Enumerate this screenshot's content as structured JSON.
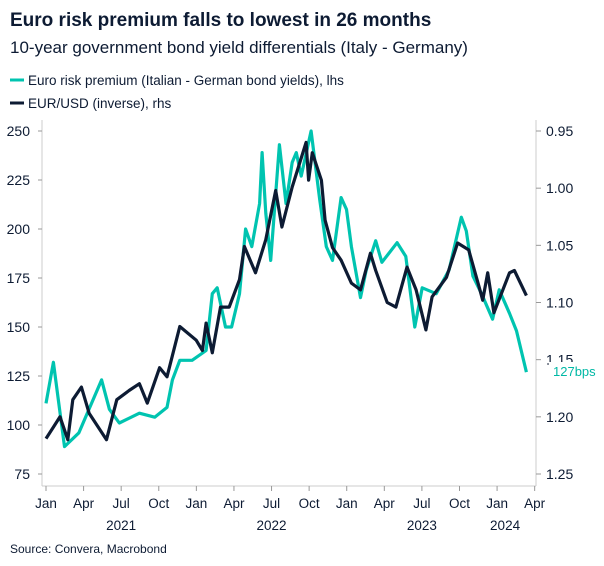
{
  "chart_data": {
    "type": "line",
    "title": "Euro risk premium falls to lowest in 26 months",
    "subtitle": "10-year government bond yield differentials (Italy - Germany)",
    "source": "Source: Convera, Macrobond",
    "annotation": "127bps",
    "colors": {
      "spread": "#00c4b0",
      "eurusd": "#0d1b33",
      "annotation": "#00b8a5",
      "axis": "#cccccc",
      "text": "#0d1b33"
    },
    "x_ticks": [
      "Jan",
      "Apr",
      "Jul",
      "Oct",
      "Jan",
      "Apr",
      "Jul",
      "Oct",
      "Jan",
      "Apr",
      "Jul",
      "Oct",
      "Jan",
      "Apr"
    ],
    "x_years": [
      "2021",
      "2022",
      "2023",
      "2024"
    ],
    "left_axis": {
      "range": [
        75,
        250
      ],
      "ticks": [
        "250",
        "225",
        "200",
        "175",
        "150",
        "125",
        "100",
        "75"
      ],
      "values": [
        250,
        225,
        200,
        175,
        150,
        125,
        100,
        75
      ]
    },
    "right_axis": {
      "range": [
        0.95,
        1.25
      ],
      "inverted": true,
      "ticks": [
        "0.95",
        "1.00",
        "1.05",
        "1.10",
        "1.15",
        "1.20",
        "1.25"
      ],
      "values": [
        0.95,
        1.0,
        1.05,
        1.1,
        1.15,
        1.2,
        1.25
      ]
    },
    "legend_position": "top-left",
    "series": [
      {
        "name": "Euro risk premium (Italian - German bond yields), lhs",
        "axis": "left",
        "x": [
          "2021-01-01",
          "2021-01-19",
          "2021-02-01",
          "2021-02-15",
          "2021-03-22",
          "2021-05-16",
          "2021-06-04",
          "2021-06-28",
          "2021-08-16",
          "2021-09-22",
          "2021-10-22",
          "2021-11-04",
          "2021-11-22",
          "2021-12-22",
          "2022-01-25",
          "2022-02-09",
          "2022-02-21",
          "2022-03-13",
          "2022-03-28",
          "2022-04-16",
          "2022-05-01",
          "2022-05-16",
          "2022-06-04",
          "2022-06-10",
          "2022-06-19",
          "2022-07-01",
          "2022-07-22",
          "2022-08-07",
          "2022-08-22",
          "2022-09-01",
          "2022-09-13",
          "2022-10-07",
          "2022-10-28",
          "2022-11-13",
          "2022-11-28",
          "2022-12-19",
          "2023-01-01",
          "2023-01-13",
          "2023-02-04",
          "2023-02-18",
          "2023-03-13",
          "2023-03-28",
          "2023-05-04",
          "2023-05-25",
          "2023-06-16",
          "2023-07-04",
          "2023-08-07",
          "2023-09-07",
          "2023-10-07",
          "2023-10-19",
          "2023-11-04",
          "2023-11-25",
          "2023-12-22",
          "2024-01-07",
          "2024-02-01",
          "2024-02-18",
          "2024-03-13"
        ],
        "y": [
          111,
          132,
          111,
          89,
          96,
          123,
          108,
          101,
          106,
          104,
          109,
          123,
          133,
          133,
          138,
          167,
          170,
          150,
          150,
          167,
          200,
          191,
          213,
          239,
          208,
          184,
          243,
          213,
          234,
          239,
          227,
          250,
          215,
          191,
          184,
          216,
          210,
          191,
          165,
          179,
          194,
          183,
          193,
          186,
          150,
          170,
          167,
          179,
          206,
          199,
          176,
          167,
          154,
          169,
          157,
          148,
          127
        ]
      },
      {
        "name": "EUR/USD (inverse), rhs",
        "axis": "right",
        "x": [
          "2021-01-01",
          "2021-01-19",
          "2021-02-04",
          "2021-02-23",
          "2021-03-07",
          "2021-03-28",
          "2021-04-16",
          "2021-05-28",
          "2021-06-22",
          "2021-07-22",
          "2021-08-16",
          "2021-09-04",
          "2021-10-04",
          "2021-10-22",
          "2021-11-22",
          "2022-01-01",
          "2022-01-16",
          "2022-01-25",
          "2022-02-09",
          "2022-03-01",
          "2022-03-22",
          "2022-04-16",
          "2022-04-28",
          "2022-05-25",
          "2022-06-19",
          "2022-07-13",
          "2022-07-28",
          "2022-08-22",
          "2022-09-25",
          "2022-10-01",
          "2022-10-10",
          "2022-11-01",
          "2022-11-10",
          "2022-11-28",
          "2022-12-19",
          "2023-01-13",
          "2023-02-04",
          "2023-02-28",
          "2023-03-13",
          "2023-04-10",
          "2023-05-01",
          "2023-05-28",
          "2023-06-19",
          "2023-07-13",
          "2023-07-28",
          "2023-09-01",
          "2023-09-28",
          "2023-10-25",
          "2023-11-19",
          "2023-11-28",
          "2023-12-10",
          "2023-12-25",
          "2024-02-01",
          "2024-02-13",
          "2024-03-13"
        ],
        "y": [
          1.219,
          1.209,
          1.2,
          1.22,
          1.185,
          1.174,
          1.197,
          1.22,
          1.185,
          1.177,
          1.171,
          1.188,
          1.157,
          1.165,
          1.121,
          1.133,
          1.142,
          1.118,
          1.144,
          1.104,
          1.104,
          1.08,
          1.051,
          1.074,
          1.045,
          1.002,
          1.034,
          0.999,
          0.96,
          0.993,
          0.969,
          0.993,
          1.028,
          1.052,
          1.063,
          1.083,
          1.089,
          1.057,
          1.072,
          1.1,
          1.104,
          1.069,
          1.089,
          1.124,
          1.095,
          1.078,
          1.048,
          1.054,
          1.086,
          1.098,
          1.074,
          1.109,
          1.074,
          1.072,
          1.094
        ]
      }
    ]
  }
}
